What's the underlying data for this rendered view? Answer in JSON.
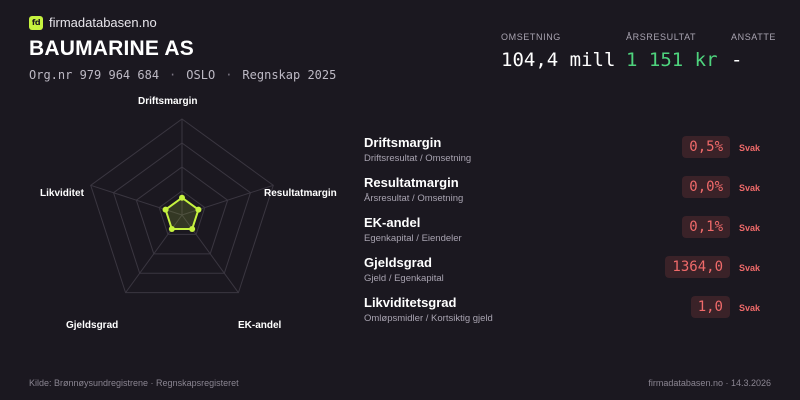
{
  "brand": {
    "logo": "fd",
    "name": "firmadatabasen.no"
  },
  "company": {
    "name": "BAUMARINE AS",
    "orgnr": "Org.nr 979 964 684",
    "city": "OSLO",
    "period": "Regnskap 2025",
    "separator": "·"
  },
  "kpis": [
    {
      "label": "OMSETNING",
      "value": "104,4 mill"
    },
    {
      "label": "ÅRSRESULTAT",
      "value": "1 151 kr"
    },
    {
      "label": "ANSATTE",
      "value": "-"
    }
  ],
  "radar": {
    "axes": [
      "Driftsmargin",
      "Resultatmargin",
      "EK-andel",
      "Gjeldsgrad",
      "Likviditet"
    ],
    "values": [
      0.18,
      0.18,
      0.18,
      0.18,
      0.18
    ],
    "accent": "#c6f33f",
    "grid_color": "#3a3640"
  },
  "metrics": [
    {
      "name": "Driftsmargin",
      "sub": "Driftsresultat / Omsetning",
      "value": "0,5%",
      "status": "Svak"
    },
    {
      "name": "Resultatmargin",
      "sub": "Årsresultat / Omsetning",
      "value": "0,0%",
      "status": "Svak"
    },
    {
      "name": "EK-andel",
      "sub": "Egenkapital / Eiendeler",
      "value": "0,1%",
      "status": "Svak"
    },
    {
      "name": "Gjeldsgrad",
      "sub": "Gjeld / Egenkapital",
      "value": "1364,0",
      "status": "Svak"
    },
    {
      "name": "Likviditetsgrad",
      "sub": "Omløpsmidler / Kortsiktig gjeld",
      "value": "1,0",
      "status": "Svak"
    }
  ],
  "footer": {
    "source": "Kilde: Brønnøysundregistrene · Regnskapsregisteret",
    "site_date": "firmadatabasen.no · 14.3.2026"
  }
}
